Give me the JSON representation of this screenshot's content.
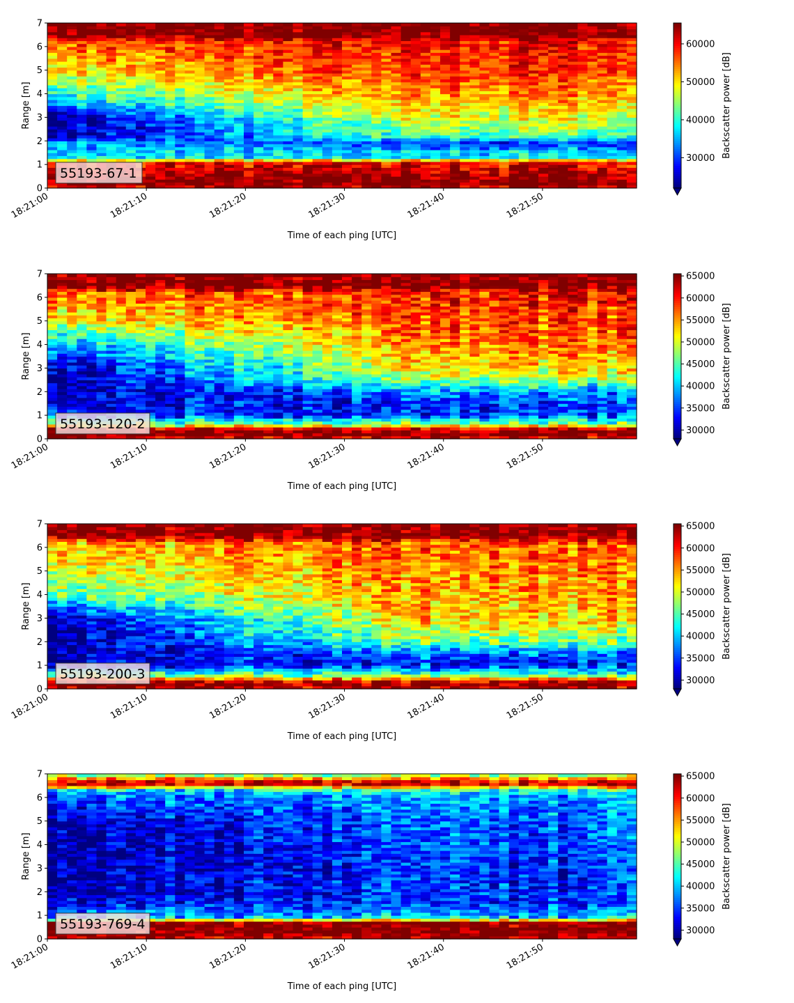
{
  "chart_data": [
    {
      "type": "heatmap",
      "panel_label": "55193-67-1",
      "xlabel": "Time of each ping [UTC]",
      "ylabel": "Range [m]",
      "x_ticks": [
        "18:21:00",
        "18:21:10",
        "18:21:20",
        "18:21:30",
        "18:21:40",
        "18:21:50"
      ],
      "y_ticks": [
        "0",
        "1",
        "2",
        "3",
        "4",
        "5",
        "6",
        "7"
      ],
      "ylim": [
        0,
        7
      ],
      "x_range_seconds": [
        0,
        59.5
      ],
      "colorbar_label": "Backscatter power [dB]",
      "colorbar_ticks": [
        30000,
        40000,
        50000,
        60000
      ],
      "colorbar_range": [
        22000,
        65500
      ],
      "colorbar_extend": "min",
      "colormap": "jet",
      "profile": {
        "range_m": [
          0.0,
          0.2,
          0.3,
          1.1,
          1.3,
          1.6,
          1.9,
          2.2,
          3.0,
          4.0,
          5.0,
          6.2,
          6.5,
          7.0
        ],
        "start_db": [
          62000,
          65500,
          65500,
          60000,
          38000,
          36000,
          35000,
          24000,
          24000,
          40000,
          50000,
          56000,
          65500,
          65500
        ],
        "end_db": [
          62000,
          65500,
          65500,
          60000,
          38000,
          36000,
          28000,
          42000,
          48000,
          54000,
          58000,
          60000,
          65500,
          65500
        ]
      }
    },
    {
      "type": "heatmap",
      "panel_label": "55193-120-2",
      "xlabel": "Time of each ping [UTC]",
      "ylabel": "Range [m]",
      "x_ticks": [
        "18:21:00",
        "18:21:10",
        "18:21:20",
        "18:21:30",
        "18:21:40",
        "18:21:50"
      ],
      "y_ticks": [
        "0",
        "1",
        "2",
        "3",
        "4",
        "5",
        "6",
        "7"
      ],
      "ylim": [
        0,
        7
      ],
      "x_range_seconds": [
        0,
        59.5
      ],
      "colorbar_label": "Backscatter power [dB]",
      "colorbar_ticks": [
        30000,
        35000,
        40000,
        45000,
        50000,
        55000,
        60000,
        65000
      ],
      "colorbar_range": [
        28000,
        65500
      ],
      "colorbar_extend": "min",
      "colormap": "jet",
      "profile": {
        "range_m": [
          0.0,
          0.2,
          0.4,
          0.6,
          0.8,
          1.0,
          1.5,
          2.0,
          2.5,
          3.0,
          4.0,
          5.0,
          6.2,
          6.5,
          7.0
        ],
        "start_db": [
          62000,
          65500,
          65500,
          48000,
          42000,
          33000,
          31000,
          29000,
          29000,
          29000,
          38000,
          50000,
          56000,
          65500,
          65500
        ],
        "end_db": [
          62000,
          65500,
          65500,
          48000,
          42000,
          35000,
          34000,
          38000,
          48000,
          52000,
          56000,
          58000,
          60000,
          65500,
          65500
        ]
      }
    },
    {
      "type": "heatmap",
      "panel_label": "55193-200-3",
      "xlabel": "Time of each ping [UTC]",
      "ylabel": "Range [m]",
      "x_ticks": [
        "18:21:00",
        "18:21:10",
        "18:21:20",
        "18:21:30",
        "18:21:40",
        "18:21:50"
      ],
      "y_ticks": [
        "0",
        "1",
        "2",
        "3",
        "4",
        "5",
        "6",
        "7"
      ],
      "ylim": [
        0,
        7
      ],
      "x_range_seconds": [
        0,
        59.5
      ],
      "colorbar_label": "Backscatter power [dB]",
      "colorbar_ticks": [
        30000,
        35000,
        40000,
        45000,
        50000,
        55000,
        60000,
        65000
      ],
      "colorbar_range": [
        28000,
        65500
      ],
      "colorbar_extend": "min",
      "colormap": "jet",
      "profile": {
        "range_m": [
          0.0,
          0.15,
          0.35,
          0.6,
          0.8,
          1.0,
          1.5,
          2.0,
          2.5,
          3.0,
          4.0,
          5.0,
          6.2,
          6.5,
          7.0
        ],
        "start_db": [
          62000,
          65500,
          62000,
          45000,
          40000,
          31000,
          30000,
          29000,
          29000,
          30000,
          45000,
          50000,
          54000,
          65500,
          65500
        ],
        "end_db": [
          62000,
          65500,
          62000,
          45000,
          40000,
          34000,
          36000,
          46000,
          50000,
          53000,
          55000,
          56000,
          58000,
          65500,
          65500
        ]
      }
    },
    {
      "type": "heatmap",
      "panel_label": "55193-769-4",
      "xlabel": "Time of each ping [UTC]",
      "ylabel": "Range [m]",
      "x_ticks": [
        "18:21:00",
        "18:21:10",
        "18:21:20",
        "18:21:30",
        "18:21:40",
        "18:21:50"
      ],
      "y_ticks": [
        "0",
        "1",
        "2",
        "3",
        "4",
        "5",
        "6",
        "7"
      ],
      "ylim": [
        0,
        7
      ],
      "x_range_seconds": [
        0,
        59.5
      ],
      "colorbar_label": "Backscatter power [dB]",
      "colorbar_ticks": [
        30000,
        35000,
        40000,
        45000,
        50000,
        55000,
        60000,
        65000
      ],
      "colorbar_range": [
        28000,
        65500
      ],
      "colorbar_extend": "min",
      "colormap": "jet",
      "profile": {
        "range_m": [
          0.0,
          0.25,
          0.7,
          0.9,
          1.5,
          2.0,
          3.0,
          4.0,
          5.0,
          6.0,
          6.3,
          6.6,
          7.0
        ],
        "start_db": [
          62000,
          65500,
          65500,
          40000,
          32000,
          30000,
          29000,
          29000,
          30000,
          36000,
          40000,
          65500,
          45000
        ],
        "end_db": [
          62000,
          65500,
          65500,
          40000,
          34000,
          34000,
          34000,
          35000,
          36000,
          38000,
          42000,
          65500,
          45000
        ]
      }
    }
  ]
}
